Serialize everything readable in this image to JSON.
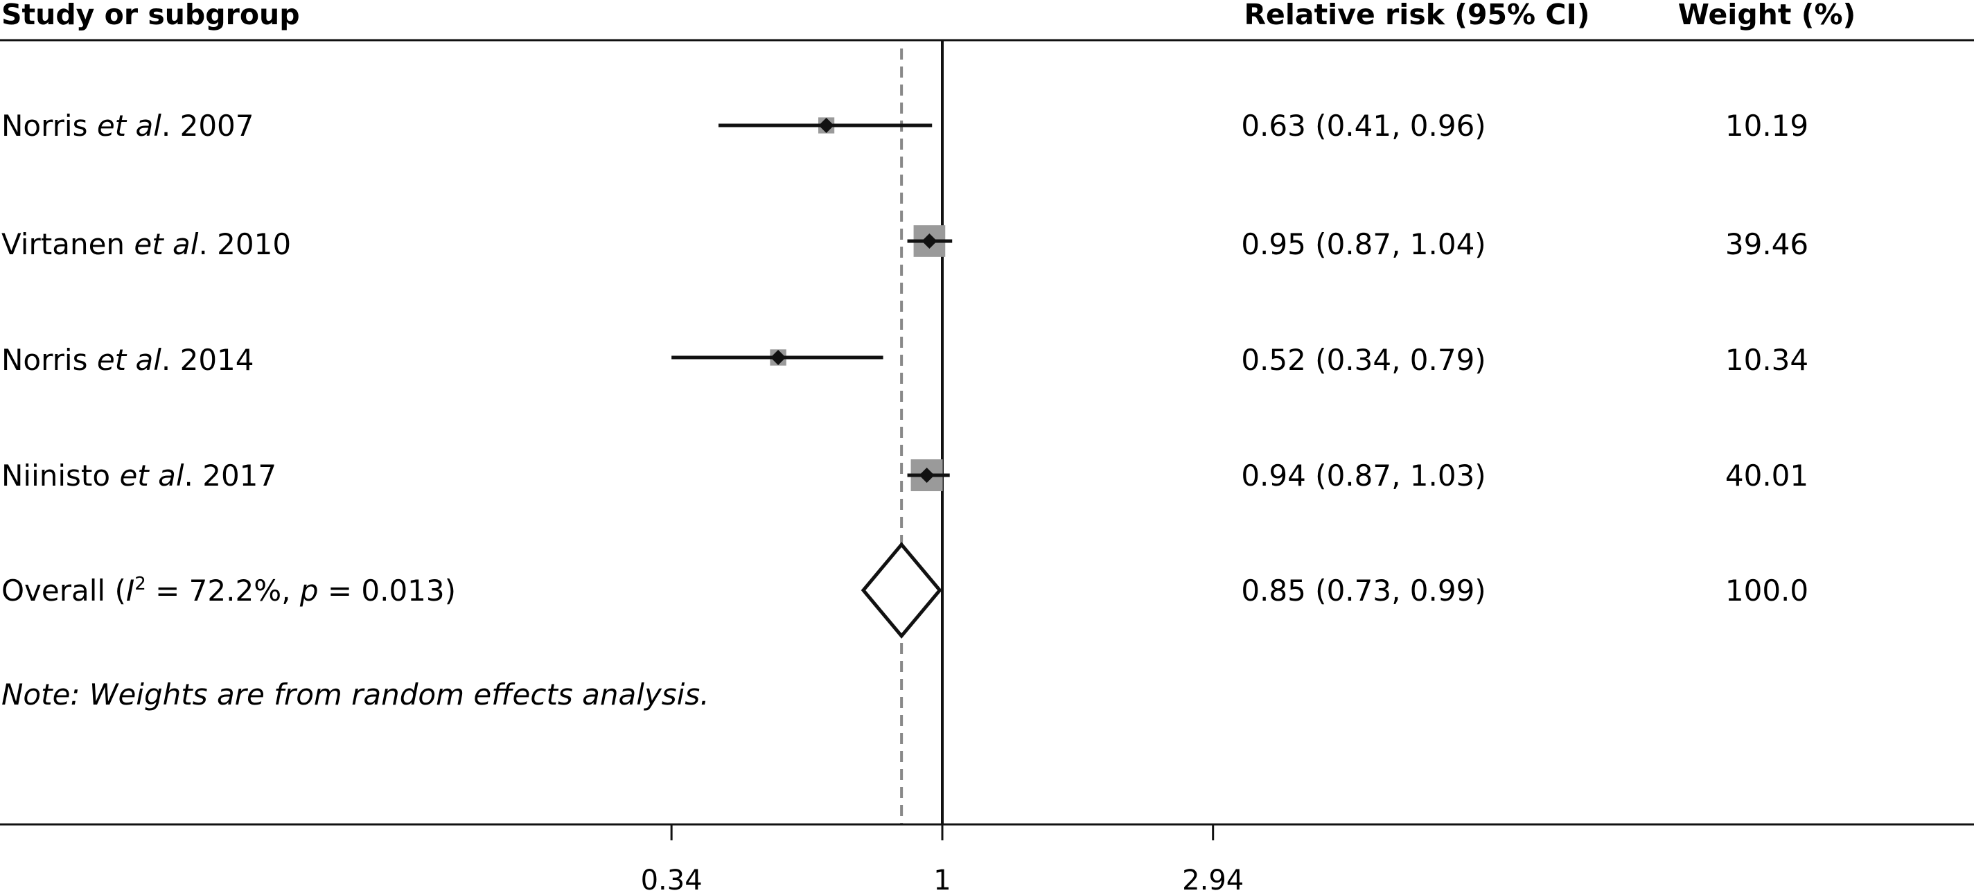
{
  "chart_data": {
    "type": "forest",
    "headers": {
      "study": "Study or subgroup",
      "effect": "Relative risk (95% CI)",
      "weight": "Weight (%)"
    },
    "studies": [
      {
        "pre": "Norris ",
        "etal": "et al",
        "post": ". 2007",
        "rr": 0.63,
        "lo": 0.41,
        "hi": 0.96,
        "rr_text": "0.63 (0.41, 0.96)",
        "weight": 10.19,
        "weight_text": "10.19"
      },
      {
        "pre": "Virtanen ",
        "etal": "et al",
        "post": ". 2010",
        "rr": 0.95,
        "lo": 0.87,
        "hi": 1.04,
        "rr_text": "0.95 (0.87, 1.04)",
        "weight": 39.46,
        "weight_text": "39.46"
      },
      {
        "pre": "Norris ",
        "etal": "et al",
        "post": ". 2014",
        "rr": 0.52,
        "lo": 0.34,
        "hi": 0.79,
        "rr_text": "0.52 (0.34, 0.79)",
        "weight": 10.34,
        "weight_text": "10.34"
      },
      {
        "pre": "Niinisto ",
        "etal": "et al",
        "post": ". 2017",
        "rr": 0.94,
        "lo": 0.87,
        "hi": 1.03,
        "rr_text": "0.94 (0.87, 1.03)",
        "weight": 40.01,
        "weight_text": "40.01"
      }
    ],
    "overall": {
      "label_pre": "Overall (",
      "i_symbol": "I",
      "sq": "2",
      "label_mid": " = 72.2%, ",
      "p_symbol": "p",
      "label_post": " = 0.013)",
      "rr": 0.85,
      "lo": 0.73,
      "hi": 0.99,
      "rr_text": "0.85 (0.73, 0.99)",
      "weight_text": "100.0"
    },
    "note": "Note: Weights are from random effects analysis.",
    "x_axis": {
      "scale": "log",
      "ticks": [
        0.34,
        1,
        2.94
      ],
      "tick_labels": [
        "0.34",
        "1",
        "2.94"
      ]
    },
    "null_line": 1,
    "summary_line": 0.85
  }
}
